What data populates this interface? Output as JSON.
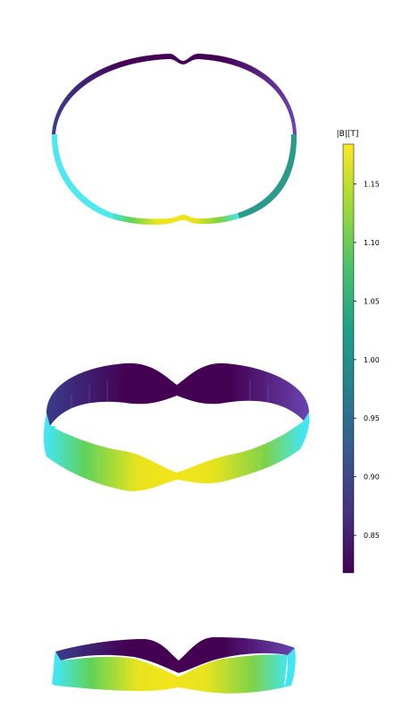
{
  "chart_data": {
    "type": "heatmap",
    "title": "",
    "colorbar": {
      "label": "|B|[T]",
      "colormap": "viridis",
      "range": [
        0.818,
        1.184
      ],
      "ticks": [
        0.85,
        0.9,
        0.95,
        1.0,
        1.05,
        1.1,
        1.15
      ],
      "tick_labels": [
        "0.85",
        "0.90",
        "0.95",
        "1.00",
        "1.05",
        "1.10",
        "1.15"
      ],
      "placement": "right"
    },
    "views": [
      "top",
      "oblique",
      "side"
    ],
    "grid": false
  }
}
